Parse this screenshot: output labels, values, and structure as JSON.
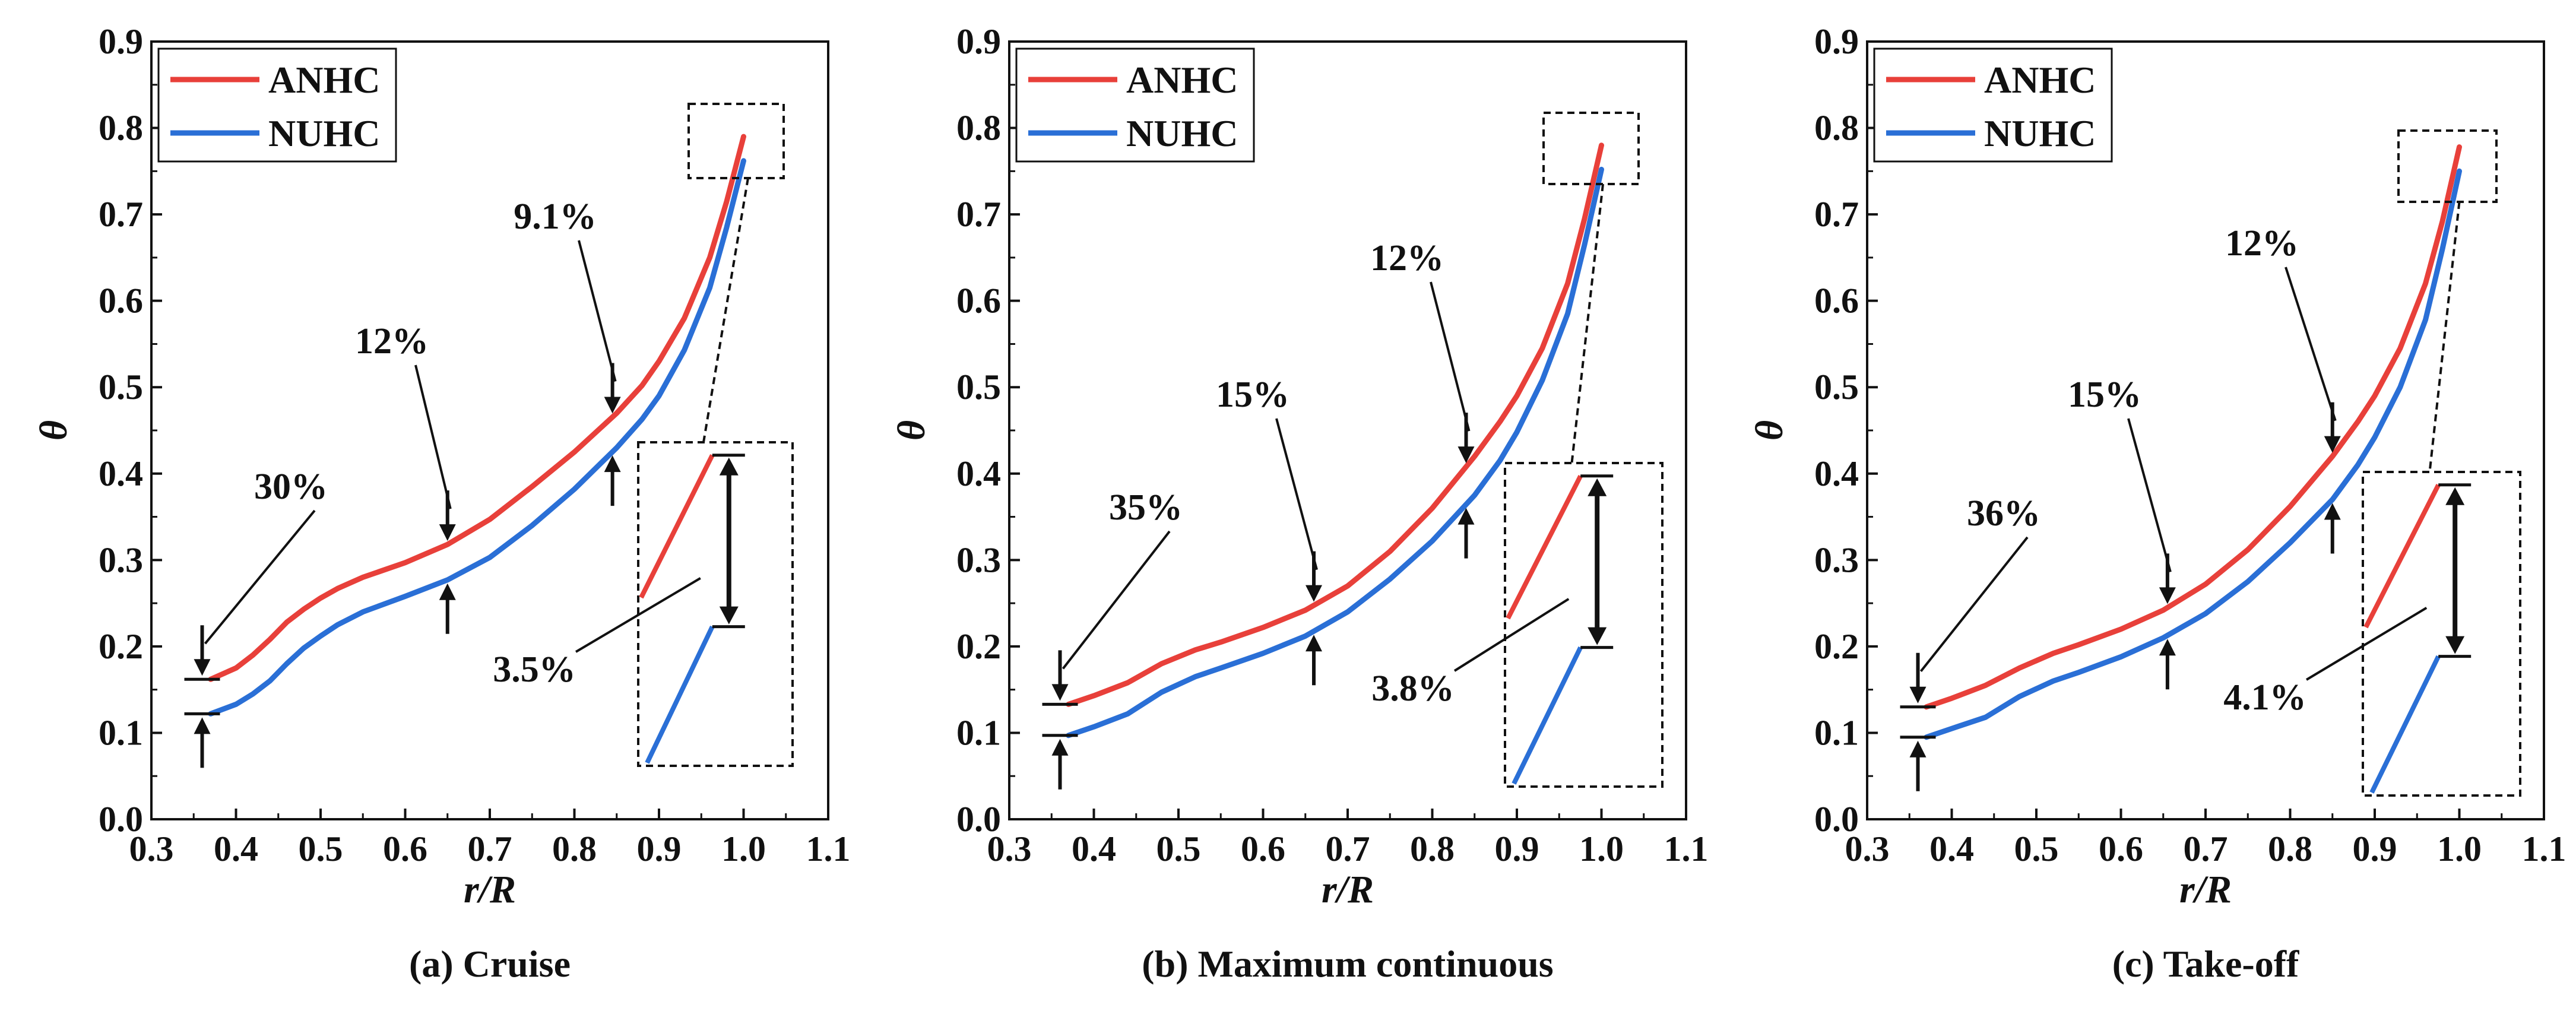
{
  "chart_data": [
    {
      "type": "line",
      "caption": "(a) Cruise",
      "xlabel": "r/R",
      "ylabel": "θ",
      "xlim": [
        0.3,
        1.1
      ],
      "ylim": [
        0.0,
        0.9
      ],
      "xticks": [
        "0.3",
        "0.4",
        "0.5",
        "0.6",
        "0.7",
        "0.8",
        "0.9",
        "1.0",
        "1.1"
      ],
      "yticks": [
        "0.0",
        "0.1",
        "0.2",
        "0.3",
        "0.4",
        "0.5",
        "0.6",
        "0.7",
        "0.8",
        "0.9"
      ],
      "legend": [
        "ANHC",
        "NUHC"
      ],
      "series": [
        {
          "name": "ANHC",
          "color": "#e8403a",
          "x": [
            0.37,
            0.4,
            0.42,
            0.44,
            0.46,
            0.48,
            0.5,
            0.52,
            0.55,
            0.6,
            0.65,
            0.7,
            0.75,
            0.8,
            0.85,
            0.88,
            0.9,
            0.93,
            0.96,
            0.98,
            1.0
          ],
          "y": [
            0.162,
            0.175,
            0.19,
            0.208,
            0.228,
            0.243,
            0.256,
            0.267,
            0.28,
            0.297,
            0.318,
            0.347,
            0.385,
            0.425,
            0.47,
            0.502,
            0.53,
            0.58,
            0.65,
            0.715,
            0.79
          ]
        },
        {
          "name": "NUHC",
          "color": "#2a6fd6",
          "x": [
            0.37,
            0.4,
            0.42,
            0.44,
            0.46,
            0.48,
            0.5,
            0.52,
            0.55,
            0.6,
            0.65,
            0.7,
            0.75,
            0.8,
            0.85,
            0.88,
            0.9,
            0.93,
            0.96,
            0.98,
            1.0
          ],
          "y": [
            0.122,
            0.133,
            0.145,
            0.16,
            0.18,
            0.198,
            0.212,
            0.225,
            0.24,
            0.258,
            0.277,
            0.303,
            0.34,
            0.382,
            0.43,
            0.463,
            0.49,
            0.543,
            0.615,
            0.685,
            0.762
          ]
        }
      ],
      "annotations": [
        {
          "label": "30%",
          "x": 0.36
        },
        {
          "label": "12%",
          "x": 0.65
        },
        {
          "label": "9.1%",
          "x": 0.845
        },
        {
          "label": "3.5%",
          "x": 1.0
        }
      ]
    },
    {
      "type": "line",
      "caption": "(b) Maximum continuous",
      "xlabel": "r/R",
      "ylabel": "θ",
      "xlim": [
        0.3,
        1.1
      ],
      "ylim": [
        0.0,
        0.9
      ],
      "xticks": [
        "0.3",
        "0.4",
        "0.5",
        "0.6",
        "0.7",
        "0.8",
        "0.9",
        "1.0",
        "1.1"
      ],
      "yticks": [
        "0.0",
        "0.1",
        "0.2",
        "0.3",
        "0.4",
        "0.5",
        "0.6",
        "0.7",
        "0.8",
        "0.9"
      ],
      "legend": [
        "ANHC",
        "NUHC"
      ],
      "series": [
        {
          "name": "ANHC",
          "color": "#e8403a",
          "x": [
            0.37,
            0.4,
            0.44,
            0.48,
            0.52,
            0.55,
            0.6,
            0.65,
            0.7,
            0.75,
            0.8,
            0.85,
            0.88,
            0.9,
            0.93,
            0.96,
            0.98,
            1.0
          ],
          "y": [
            0.133,
            0.143,
            0.158,
            0.18,
            0.196,
            0.205,
            0.222,
            0.242,
            0.27,
            0.31,
            0.36,
            0.42,
            0.46,
            0.49,
            0.545,
            0.62,
            0.695,
            0.78
          ]
        },
        {
          "name": "NUHC",
          "color": "#2a6fd6",
          "x": [
            0.37,
            0.4,
            0.44,
            0.48,
            0.52,
            0.55,
            0.6,
            0.65,
            0.7,
            0.75,
            0.8,
            0.85,
            0.88,
            0.9,
            0.93,
            0.96,
            0.98,
            1.0
          ],
          "y": [
            0.097,
            0.107,
            0.122,
            0.147,
            0.165,
            0.175,
            0.192,
            0.212,
            0.24,
            0.278,
            0.322,
            0.375,
            0.415,
            0.448,
            0.508,
            0.585,
            0.665,
            0.752
          ]
        }
      ],
      "annotations": [
        {
          "label": "35%",
          "x": 0.36
        },
        {
          "label": "15%",
          "x": 0.66
        },
        {
          "label": "12%",
          "x": 0.84
        },
        {
          "label": "3.8%",
          "x": 1.0
        }
      ]
    },
    {
      "type": "line",
      "caption": "(c) Take-off",
      "xlabel": "r/R",
      "ylabel": "θ",
      "xlim": [
        0.3,
        1.1
      ],
      "ylim": [
        0.0,
        0.9
      ],
      "xticks": [
        "0.3",
        "0.4",
        "0.5",
        "0.6",
        "0.7",
        "0.8",
        "0.9",
        "1.0",
        "1.1"
      ],
      "yticks": [
        "0.0",
        "0.1",
        "0.2",
        "0.3",
        "0.4",
        "0.5",
        "0.6",
        "0.7",
        "0.8",
        "0.9"
      ],
      "legend": [
        "ANHC",
        "NUHC"
      ],
      "series": [
        {
          "name": "ANHC",
          "color": "#e8403a",
          "x": [
            0.37,
            0.4,
            0.44,
            0.48,
            0.52,
            0.55,
            0.6,
            0.65,
            0.7,
            0.75,
            0.8,
            0.85,
            0.88,
            0.9,
            0.93,
            0.96,
            0.98,
            1.0
          ],
          "y": [
            0.13,
            0.14,
            0.155,
            0.175,
            0.192,
            0.202,
            0.22,
            0.242,
            0.272,
            0.312,
            0.362,
            0.42,
            0.46,
            0.49,
            0.545,
            0.62,
            0.692,
            0.778
          ]
        },
        {
          "name": "NUHC",
          "color": "#2a6fd6",
          "x": [
            0.37,
            0.4,
            0.44,
            0.48,
            0.52,
            0.55,
            0.6,
            0.65,
            0.7,
            0.75,
            0.8,
            0.85,
            0.88,
            0.9,
            0.93,
            0.96,
            0.98,
            1.0
          ],
          "y": [
            0.095,
            0.105,
            0.118,
            0.142,
            0.16,
            0.17,
            0.188,
            0.21,
            0.238,
            0.275,
            0.32,
            0.37,
            0.41,
            0.442,
            0.5,
            0.578,
            0.66,
            0.75
          ]
        }
      ],
      "annotations": [
        {
          "label": "36%",
          "x": 0.36
        },
        {
          "label": "15%",
          "x": 0.655
        },
        {
          "label": "12%",
          "x": 0.85
        },
        {
          "label": "4.1%",
          "x": 1.0
        }
      ]
    }
  ]
}
